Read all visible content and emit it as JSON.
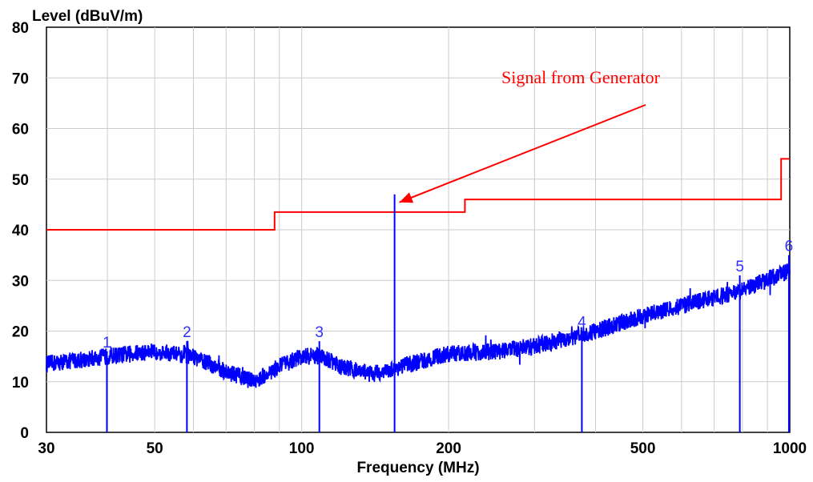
{
  "chart_data": {
    "type": "line",
    "title": "",
    "ylabel": "Level (dBuV/m)",
    "xlabel": "Frequency (MHz)",
    "x_scale": "log",
    "xlim": [
      30,
      1000
    ],
    "ylim": [
      0,
      80
    ],
    "grid": true,
    "x_ticks": [
      30,
      50,
      100,
      200,
      500,
      1000
    ],
    "y_ticks": [
      0,
      10,
      20,
      30,
      40,
      50,
      60,
      70,
      80
    ],
    "limit_line": {
      "color": "#ff0000",
      "points": [
        [
          30,
          40
        ],
        [
          88,
          40
        ],
        [
          88,
          43.5
        ],
        [
          216,
          43.5
        ],
        [
          216,
          46
        ],
        [
          960,
          46
        ],
        [
          960,
          54
        ],
        [
          1000,
          54
        ]
      ]
    },
    "noise_floor": {
      "color": "#0000ff",
      "points": [
        [
          30,
          13.5
        ],
        [
          40,
          15
        ],
        [
          50,
          16
        ],
        [
          60,
          15
        ],
        [
          70,
          12
        ],
        [
          80,
          10
        ],
        [
          90,
          13
        ],
        [
          100,
          15
        ],
        [
          110,
          15
        ],
        [
          120,
          13
        ],
        [
          140,
          11.5
        ],
        [
          160,
          13
        ],
        [
          200,
          15.5
        ],
        [
          250,
          16
        ],
        [
          300,
          17
        ],
        [
          400,
          20
        ],
        [
          500,
          23
        ],
        [
          600,
          25
        ],
        [
          800,
          28
        ],
        [
          1000,
          32
        ]
      ]
    },
    "markers": [
      {
        "label": "1",
        "x": 39.9,
        "y": 16
      },
      {
        "label": "2",
        "x": 58.2,
        "y": 18
      },
      {
        "label": "3",
        "x": 108.7,
        "y": 18
      },
      {
        "label": "4",
        "x": 375,
        "y": 20
      },
      {
        "label": "5",
        "x": 790,
        "y": 31
      },
      {
        "label": "6",
        "x": 996,
        "y": 35
      }
    ],
    "signal": {
      "x": 155,
      "y": 47,
      "color": "#0000ff"
    },
    "annotation": {
      "text": "Signal from Generator",
      "color": "#ff0000"
    }
  }
}
